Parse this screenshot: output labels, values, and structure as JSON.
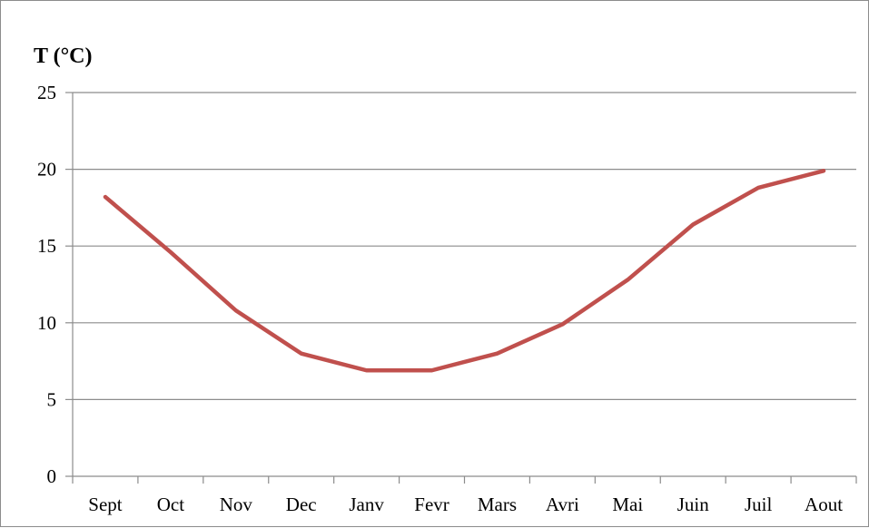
{
  "chart_data": {
    "type": "line",
    "title": "",
    "xlabel": "",
    "ylabel": "T (°C)",
    "categories": [
      "Sept",
      "Oct",
      "Nov",
      "Dec",
      "Janv",
      "Fevr",
      "Mars",
      "Avri",
      "Mai",
      "Juin",
      "Juil",
      "Aout"
    ],
    "series": [
      {
        "values": [
          18.2,
          14.6,
          10.8,
          8.0,
          6.9,
          6.9,
          8.0,
          9.9,
          12.8,
          16.4,
          18.8,
          19.9
        ],
        "color": "#c0504d"
      }
    ],
    "ylim": [
      0,
      25
    ],
    "yticks": [
      0,
      5,
      10,
      15,
      20,
      25
    ],
    "grid": true,
    "legend": "none"
  }
}
